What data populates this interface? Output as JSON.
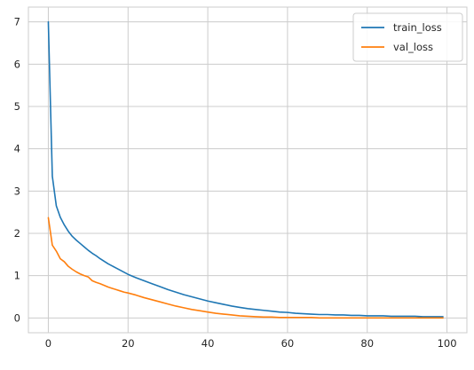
{
  "chart_data": {
    "type": "line",
    "title": "",
    "xlabel": "",
    "ylabel": "",
    "xlim": [
      -5,
      105
    ],
    "ylim": [
      -0.35,
      7.35
    ],
    "x_ticks": [
      0,
      20,
      40,
      60,
      80,
      100
    ],
    "y_ticks": [
      0,
      1,
      2,
      3,
      4,
      5,
      6,
      7
    ],
    "grid": true,
    "legend_position": "top-right",
    "series": [
      {
        "name": "train_loss",
        "color": "#1f77b4",
        "x": [
          0,
          1,
          2,
          3,
          4,
          5,
          6,
          7,
          8,
          9,
          10,
          11,
          12,
          13,
          14,
          15,
          16,
          17,
          18,
          19,
          20,
          22,
          24,
          26,
          28,
          30,
          32,
          34,
          36,
          38,
          40,
          42,
          44,
          46,
          48,
          50,
          52,
          54,
          56,
          58,
          60,
          62,
          64,
          66,
          68,
          70,
          72,
          74,
          76,
          78,
          80,
          82,
          84,
          86,
          88,
          90,
          92,
          94,
          96,
          98,
          99
        ],
        "y": [
          7.0,
          3.35,
          2.65,
          2.38,
          2.2,
          2.05,
          1.93,
          1.84,
          1.76,
          1.68,
          1.6,
          1.53,
          1.47,
          1.4,
          1.34,
          1.28,
          1.23,
          1.18,
          1.13,
          1.08,
          1.03,
          0.95,
          0.88,
          0.81,
          0.74,
          0.67,
          0.61,
          0.55,
          0.5,
          0.45,
          0.4,
          0.36,
          0.32,
          0.28,
          0.25,
          0.22,
          0.2,
          0.18,
          0.16,
          0.14,
          0.13,
          0.11,
          0.1,
          0.09,
          0.08,
          0.08,
          0.07,
          0.07,
          0.06,
          0.06,
          0.05,
          0.05,
          0.05,
          0.04,
          0.04,
          0.04,
          0.04,
          0.03,
          0.03,
          0.03,
          0.03
        ]
      },
      {
        "name": "val_loss",
        "color": "#ff7f0e",
        "x": [
          0,
          1,
          2,
          3,
          4,
          5,
          6,
          7,
          8,
          9,
          10,
          11,
          12,
          13,
          14,
          15,
          16,
          17,
          18,
          19,
          20,
          22,
          24,
          26,
          28,
          30,
          32,
          34,
          36,
          38,
          40,
          42,
          44,
          46,
          48,
          50,
          52,
          54,
          56,
          58,
          60,
          62,
          64,
          66,
          68,
          70,
          72,
          74,
          76,
          78,
          80,
          82,
          84,
          86,
          88,
          90,
          92,
          94,
          96,
          98,
          99
        ],
        "y": [
          2.37,
          1.72,
          1.58,
          1.4,
          1.33,
          1.22,
          1.15,
          1.09,
          1.04,
          1.0,
          0.97,
          0.88,
          0.84,
          0.81,
          0.77,
          0.73,
          0.7,
          0.67,
          0.64,
          0.61,
          0.59,
          0.54,
          0.48,
          0.43,
          0.38,
          0.33,
          0.28,
          0.24,
          0.2,
          0.17,
          0.14,
          0.11,
          0.09,
          0.07,
          0.05,
          0.04,
          0.03,
          0.02,
          0.02,
          0.01,
          0.01,
          0.01,
          0.01,
          0.01,
          0.0,
          0.0,
          0.0,
          0.0,
          0.0,
          0.0,
          0.0,
          0.0,
          0.0,
          0.0,
          0.0,
          0.0,
          0.0,
          0.0,
          0.0,
          0.0,
          0.0
        ]
      }
    ]
  }
}
